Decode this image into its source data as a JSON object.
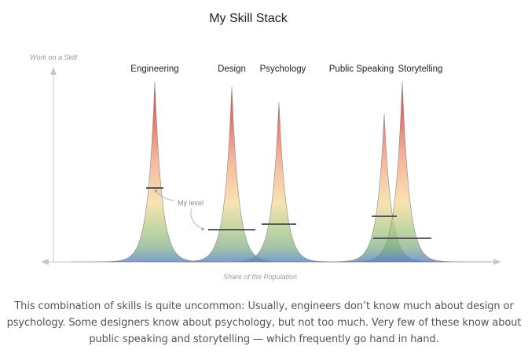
{
  "diagram": {
    "title": "My Skill Stack",
    "y_axis_label": "Work on a Skill",
    "x_axis_label": "Share of the Population",
    "annotation": "My level",
    "skills": [
      {
        "name": "Engineering"
      },
      {
        "name": "Design"
      },
      {
        "name": "Psychology"
      },
      {
        "name": "Public Speaking"
      },
      {
        "name": "Storytelling"
      }
    ]
  },
  "caption": "This combination of skills is quite uncommon: Usually, engineers don’t know much about design or psychology. Some designers know about psychology, but not too much. Very few of these know about public speaking and storytelling — which frequently go hand in hand."
}
